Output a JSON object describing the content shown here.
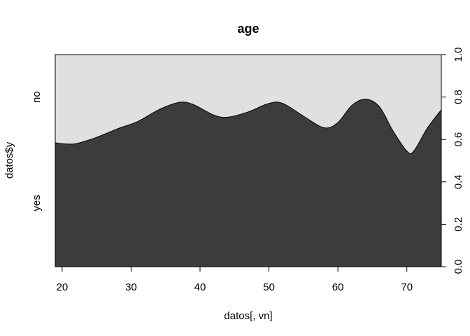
{
  "chart_data": {
    "type": "area",
    "title": "age",
    "xlabel": "datos[, vn]",
    "ylabel": "datos$y",
    "categories": [
      "no",
      "yes"
    ],
    "xlim": [
      19,
      75
    ],
    "ylim": [
      0,
      1
    ],
    "x_ticks": [
      20,
      30,
      40,
      50,
      60,
      70
    ],
    "right_ticks": [
      0.0,
      0.2,
      0.4,
      0.6,
      0.8,
      1.0
    ],
    "right_tick_labels": [
      "0.0",
      "0.2",
      "0.4",
      "0.6",
      "0.8",
      "1.0"
    ],
    "colors": {
      "yes": "#3c3c3c",
      "no": "#e0e0e0"
    },
    "boundary": {
      "x": [
        19,
        20,
        22,
        25,
        28,
        31,
        34,
        37,
        39,
        42,
        44,
        47,
        50,
        52,
        55,
        58,
        60,
        62,
        64,
        66,
        68,
        70,
        71,
        73,
        75
      ],
      "y": [
        0.585,
        0.58,
        0.58,
        0.61,
        0.65,
        0.685,
        0.74,
        0.775,
        0.765,
        0.715,
        0.705,
        0.73,
        0.77,
        0.77,
        0.71,
        0.655,
        0.68,
        0.76,
        0.79,
        0.755,
        0.64,
        0.545,
        0.545,
        0.655,
        0.74
      ]
    }
  }
}
